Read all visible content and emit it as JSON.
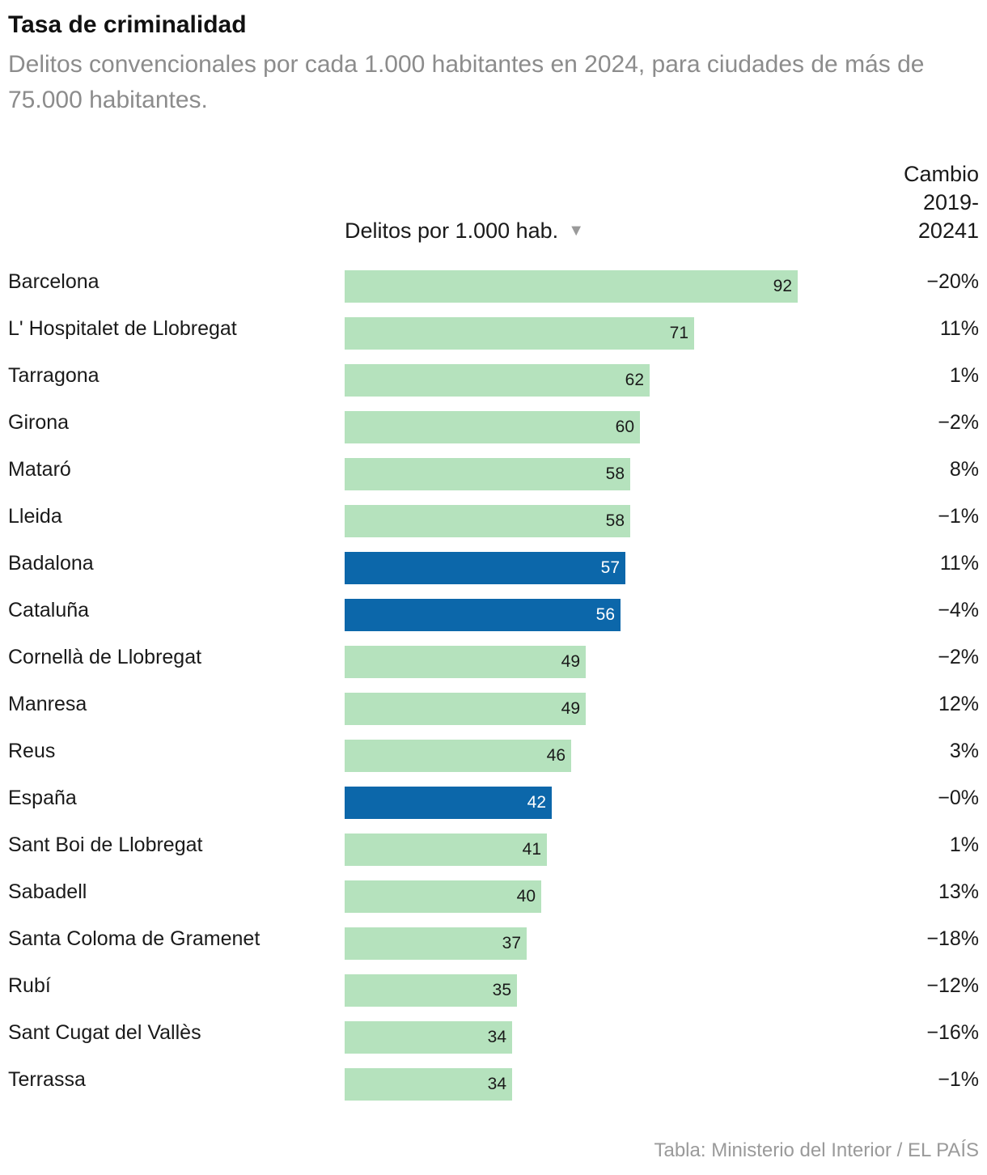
{
  "header": {
    "title": "Tasa de criminalidad",
    "subtitle": "Delitos convencionales por cada 1.000 habitantes en 2024, para ciudades de más de 75.000 habitantes."
  },
  "columns": {
    "bar_header": "Delitos por 1.000 hab.",
    "sort_icon": "triangle-down-icon",
    "change_header_1": "Cambio",
    "change_header_2": "2019-",
    "change_header_3": "20241"
  },
  "footer": {
    "source": "Tabla: Ministerio del Interior / EL PAÍS"
  },
  "colors": {
    "bar_default": "#b5e2bd",
    "bar_highlight": "#0c67aa"
  },
  "chart_data": {
    "type": "bar",
    "orientation": "horizontal",
    "title": "Tasa de criminalidad",
    "subtitle": "Delitos convencionales por cada 1.000 habitantes en 2024, para ciudades de más de 75.000 habitantes.",
    "value_label": "Delitos por 1.000 hab.",
    "xlim": [
      0,
      92
    ],
    "rows": [
      {
        "name": "Barcelona",
        "value": 92,
        "change": "−20%",
        "highlight": false
      },
      {
        "name": "L' Hospitalet de Llobregat",
        "value": 71,
        "change": "11%",
        "highlight": false
      },
      {
        "name": "Tarragona",
        "value": 62,
        "change": "1%",
        "highlight": false
      },
      {
        "name": "Girona",
        "value": 60,
        "change": "−2%",
        "highlight": false
      },
      {
        "name": "Mataró",
        "value": 58,
        "change": "8%",
        "highlight": false
      },
      {
        "name": "Lleida",
        "value": 58,
        "change": "−1%",
        "highlight": false
      },
      {
        "name": "Badalona",
        "value": 57,
        "change": "11%",
        "highlight": true
      },
      {
        "name": "Cataluña",
        "value": 56,
        "change": "−4%",
        "highlight": true
      },
      {
        "name": "Cornellà de Llobregat",
        "value": 49,
        "change": "−2%",
        "highlight": false
      },
      {
        "name": "Manresa",
        "value": 49,
        "change": "12%",
        "highlight": false
      },
      {
        "name": "Reus",
        "value": 46,
        "change": "3%",
        "highlight": false
      },
      {
        "name": "España",
        "value": 42,
        "change": "−0%",
        "highlight": true
      },
      {
        "name": "Sant Boi de Llobregat",
        "value": 41,
        "change": "1%",
        "highlight": false
      },
      {
        "name": "Sabadell",
        "value": 40,
        "change": "13%",
        "highlight": false
      },
      {
        "name": "Santa Coloma de Gramenet",
        "value": 37,
        "change": "−18%",
        "highlight": false
      },
      {
        "name": "Rubí",
        "value": 35,
        "change": "−12%",
        "highlight": false
      },
      {
        "name": "Sant Cugat del Vallès",
        "value": 34,
        "change": "−16%",
        "highlight": false
      },
      {
        "name": "Terrassa",
        "value": 34,
        "change": "−1%",
        "highlight": false
      }
    ]
  }
}
